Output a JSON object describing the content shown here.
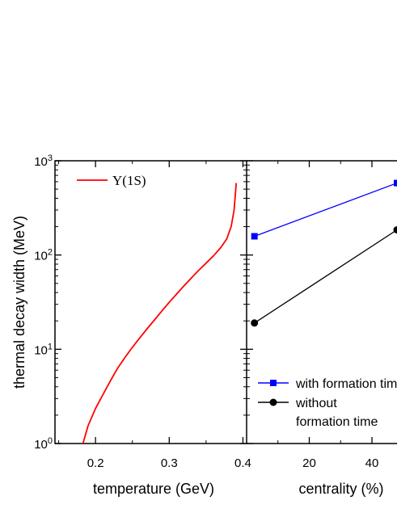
{
  "chart_data": [
    {
      "type": "line",
      "xlabel": "temperature (GeV)",
      "ylabel": "thermal decay width (MeV)",
      "xlim": [
        0.145,
        0.405
      ],
      "ylim": [
        1,
        1000
      ],
      "yscale": "log",
      "xticks": [
        {
          "value": 0.2,
          "label": "0.2"
        },
        {
          "value": 0.3,
          "label": "0.3"
        },
        {
          "value": 0.4,
          "label": "0.4"
        }
      ],
      "yticks": [
        {
          "value": 1,
          "base": "10",
          "exp": "0"
        },
        {
          "value": 10,
          "base": "10",
          "exp": "1"
        },
        {
          "value": 100,
          "base": "10",
          "exp": "2"
        },
        {
          "value": 1000,
          "base": "10",
          "exp": "3"
        }
      ],
      "legend_position": "top-left",
      "series": [
        {
          "name": "Υ(1S)",
          "color": "#ff0000",
          "x": [
            0.183,
            0.19,
            0.2,
            0.21,
            0.22,
            0.23,
            0.24,
            0.25,
            0.26,
            0.27,
            0.28,
            0.29,
            0.3,
            0.31,
            0.32,
            0.33,
            0.34,
            0.35,
            0.36,
            0.37,
            0.378,
            0.384,
            0.388,
            0.391
          ],
          "y": [
            1.0,
            1.55,
            2.35,
            3.3,
            4.6,
            6.3,
            8.2,
            10.5,
            13.2,
            16.5,
            20.5,
            25.5,
            31.5,
            38.5,
            47,
            57,
            69,
            82,
            98,
            120,
            148,
            200,
            300,
            580
          ]
        }
      ]
    },
    {
      "type": "line",
      "xlabel": "centrality (%)",
      "ylabel": "",
      "xlim": [
        0,
        48
      ],
      "ylim": [
        1,
        1000
      ],
      "yscale": "log",
      "xticks": [
        {
          "value": 20,
          "label": "20"
        },
        {
          "value": 40,
          "label": "40"
        }
      ],
      "legend_position": "bottom-right",
      "series": [
        {
          "name": "with formation time",
          "color": "#0000ff",
          "marker": "square",
          "x": [
            2.5,
            48
          ],
          "y": [
            158,
            580
          ]
        },
        {
          "name": "without formation time",
          "color": "#000000",
          "marker": "circle",
          "x": [
            2.5,
            48
          ],
          "y": [
            19,
            185
          ]
        }
      ]
    }
  ]
}
